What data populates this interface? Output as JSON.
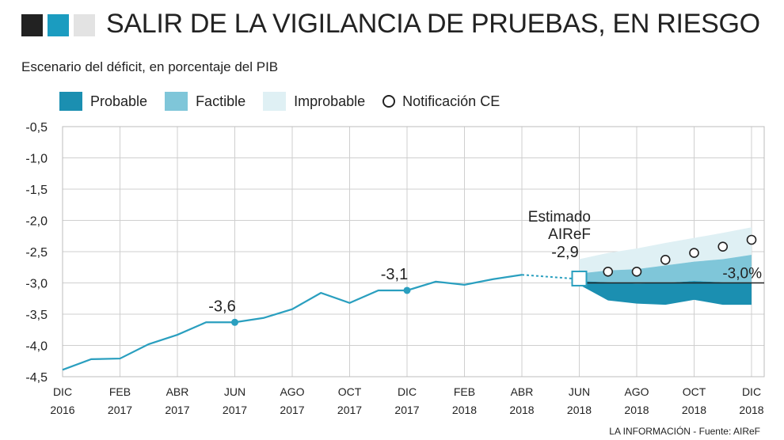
{
  "chart_data": {
    "type": "line",
    "title": "SALIR DE LA VIGILANCIA DE PRUEBAS, EN RIESGO",
    "subtitle": "Escenario del déficit, en porcentaje del PIB",
    "source": "LA INFORMACIÓN - Fuente: AIReF",
    "x": [
      "2016-12",
      "2017-01",
      "2017-02",
      "2017-03",
      "2017-04",
      "2017-05",
      "2017-06",
      "2017-07",
      "2017-08",
      "2017-09",
      "2017-10",
      "2017-11",
      "2017-12",
      "2018-01",
      "2018-02",
      "2018-03",
      "2018-04"
    ],
    "series": [
      {
        "color": "#2a9fbf",
        "values": [
          -4.39,
          -4.22,
          -4.21,
          -3.98,
          -3.83,
          -3.63,
          -3.63,
          -3.56,
          -3.42,
          -3.16,
          -3.32,
          -3.12,
          -3.12,
          -2.98,
          -3.03,
          -2.94,
          -2.87
        ],
        "value_labels": [
          null,
          null,
          null,
          null,
          null,
          null,
          "-3,6",
          null,
          null,
          null,
          null,
          null,
          "-3,1",
          null,
          null,
          null,
          null
        ]
      }
    ],
    "estimate": {
      "label": "Estimado\nAIReF",
      "x": "2018-06",
      "value": -2.93,
      "value_label": "-2,9"
    },
    "bands": [
      {
        "name": "Improbable",
        "color": "#dff0f4",
        "x": [
          "2018-06",
          "2018-07",
          "2018-08",
          "2018-09",
          "2018-10",
          "2018-11",
          "2018-12"
        ],
        "low": [
          -2.85,
          -2.8,
          -2.78,
          -2.72,
          -2.66,
          -2.62,
          -2.55
        ],
        "high": [
          -2.62,
          -2.52,
          -2.45,
          -2.36,
          -2.28,
          -2.2,
          -2.11
        ]
      },
      {
        "name": "Factible",
        "color": "#7fc6d9",
        "x": [
          "2018-06",
          "2018-07",
          "2018-08",
          "2018-09",
          "2018-10",
          "2018-11",
          "2018-12"
        ],
        "low": [
          -2.97,
          -2.99,
          -3.01,
          -3.0,
          -2.97,
          -2.99,
          -2.99
        ],
        "high": [
          -2.85,
          -2.8,
          -2.78,
          -2.72,
          -2.66,
          -2.62,
          -2.55
        ]
      },
      {
        "name": "Probable",
        "color": "#1b8fb1",
        "x": [
          "2018-06",
          "2018-07",
          "2018-08",
          "2018-09",
          "2018-10",
          "2018-11",
          "2018-12"
        ],
        "low": [
          -3.03,
          -3.28,
          -3.33,
          -3.35,
          -3.27,
          -3.35,
          -3.35
        ],
        "high": [
          -2.97,
          -2.99,
          -3.01,
          -3.0,
          -2.97,
          -2.99,
          -2.99
        ]
      }
    ],
    "markers": {
      "name": "Notificación CE",
      "x": [
        "2018-07",
        "2018-08",
        "2018-09",
        "2018-10",
        "2018-11",
        "2018-12"
      ],
      "values": [
        -2.82,
        -2.82,
        -2.63,
        -2.52,
        -2.42,
        -2.31
      ]
    },
    "reference": {
      "value": -3.0,
      "label": "-3,0%"
    },
    "ylim": [
      -4.5,
      -0.5
    ],
    "yticks": [
      {
        "value": -4.5,
        "label": "-4,5"
      },
      {
        "value": -4.0,
        "label": "-4,0"
      },
      {
        "value": -3.5,
        "label": "-3,5"
      },
      {
        "value": -3.0,
        "label": "-3,0"
      },
      {
        "value": -2.5,
        "label": "-2,5"
      },
      {
        "value": -2.0,
        "label": "-2,0"
      },
      {
        "value": -1.5,
        "label": "-1,5"
      },
      {
        "value": -1.0,
        "label": "-1,0"
      },
      {
        "value": -0.5,
        "label": "-0,5"
      }
    ],
    "xlim": [
      "2016-12",
      "2018-12"
    ],
    "xticks": [
      {
        "value": "2016-12",
        "label": "DIC\n2016"
      },
      {
        "value": "2017-02",
        "label": "FEB\n2017"
      },
      {
        "value": "2017-04",
        "label": "ABR\n2017"
      },
      {
        "value": "2017-06",
        "label": "JUN\n2017"
      },
      {
        "value": "2017-08",
        "label": "AGO\n2017"
      },
      {
        "value": "2017-10",
        "label": "OCT\n2017"
      },
      {
        "value": "2017-12",
        "label": "DIC\n2017"
      },
      {
        "value": "2018-02",
        "label": "FEB\n2018"
      },
      {
        "value": "2018-04",
        "label": "ABR\n2018"
      },
      {
        "value": "2018-06",
        "label": "JUN\n2018"
      },
      {
        "value": "2018-08",
        "label": "AGO\n2018"
      },
      {
        "value": "2018-10",
        "label": "OCT\n2018"
      },
      {
        "value": "2018-12",
        "label": "DIC\n2018"
      }
    ],
    "grid": true
  }
}
